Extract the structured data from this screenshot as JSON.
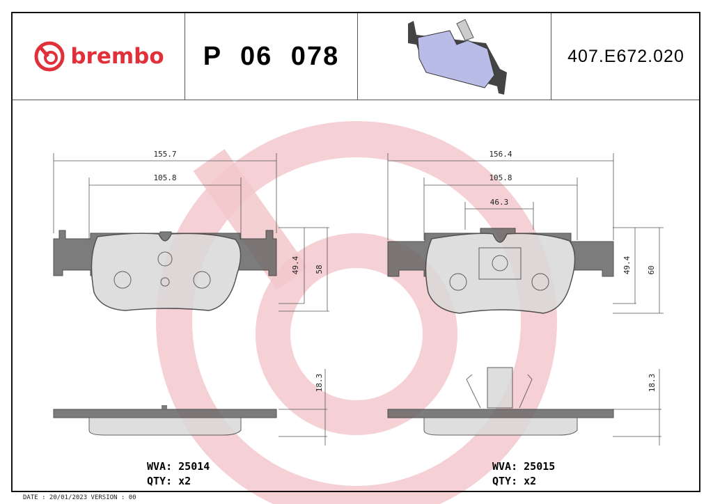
{
  "header": {
    "brand": "brembo",
    "part_number": "P 06 078",
    "code": "407.E672.020"
  },
  "colors": {
    "brand_red": "#e0303a",
    "watermark": "#f2c4c8",
    "pad": "#d9d9d9",
    "plate": "#666666"
  },
  "left": {
    "dim_width": "155.7",
    "dim_inner": "105.8",
    "dim_h1": "49.4",
    "dim_h2": "58",
    "dim_thick": "18.3",
    "wva": "WVA: 25014",
    "qty": "QTY: x2"
  },
  "right": {
    "dim_width": "156.4",
    "dim_inner": "105.8",
    "dim_sensor": "46.3",
    "dim_h1": "49.4",
    "dim_h2": "60",
    "dim_thick": "18.3",
    "wva": "WVA: 25015",
    "qty": "QTY: x2"
  },
  "footer": {
    "date": "DATE : 20/01/2023 VERSION : 00"
  }
}
